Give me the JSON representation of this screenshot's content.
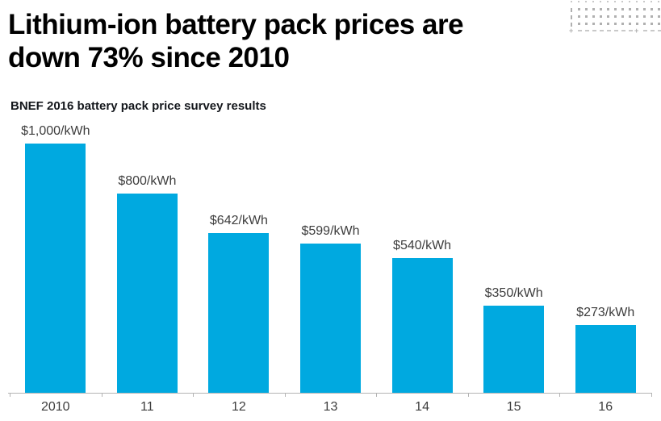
{
  "header": {
    "title_line1": "Lithium-ion battery pack prices are",
    "title_line2": "down 73% since 2010"
  },
  "chart_data": {
    "type": "bar",
    "title": "BNEF 2016 battery pack price survey results",
    "categories": [
      "2010",
      "11",
      "12",
      "13",
      "14",
      "15",
      "16"
    ],
    "values": [
      1000,
      800,
      642,
      599,
      540,
      350,
      273
    ],
    "value_labels": [
      "$1,000/kWh",
      "$800/kWh",
      "$642/kWh",
      "$599/kWh",
      "$540/kWh",
      "$350/kWh",
      "$273/kWh"
    ],
    "unit": "$/kWh",
    "xlabel": "",
    "ylabel": "",
    "ylim": [
      0,
      1000
    ],
    "grid": "off",
    "legend": "none",
    "bar_color": "#00a9e0",
    "axis_color": "#b3b3b3",
    "label_color": "#3d3d3d"
  },
  "decoration": {
    "dot_grid": {
      "rows": 5,
      "cols": 13,
      "color": "#b0b0b0",
      "light_color": "#c9c9c9"
    }
  },
  "colors": {
    "title": "#000000",
    "accent": "#00a9e0",
    "background": "#ffffff"
  }
}
